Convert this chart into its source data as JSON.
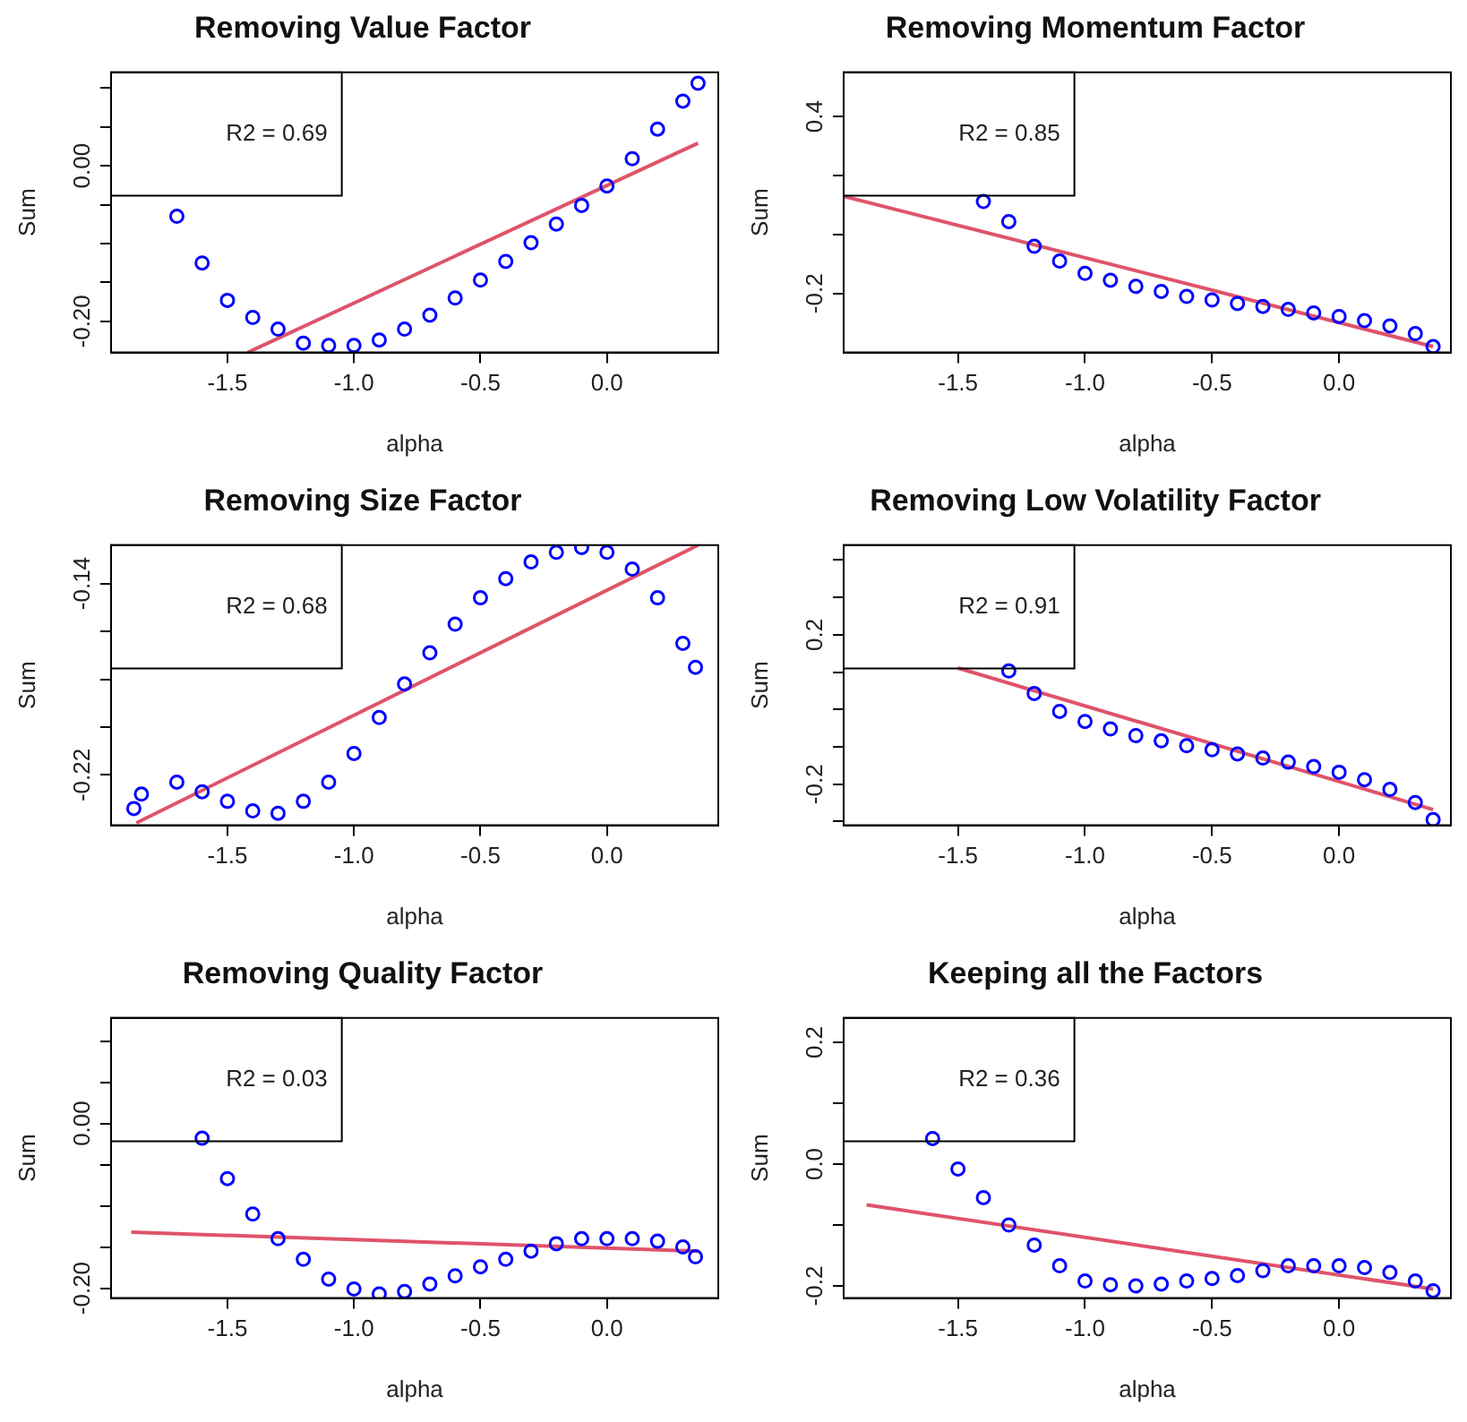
{
  "chart_data": [
    {
      "type": "scatter",
      "title": "Removing Value Factor",
      "xlabel": "alpha",
      "ylabel": "Sum",
      "annotations": [
        "R2 = 0.69"
      ],
      "xlim": [
        -1.96,
        0.44
      ],
      "xticks": [
        {
          "value": -1.5,
          "label": "-1.5"
        },
        {
          "value": -1,
          "label": "-1.0"
        },
        {
          "value": -0.5,
          "label": "-0.5"
        },
        {
          "value": 0,
          "label": "0.0"
        }
      ],
      "ylim": [
        -0.24,
        0.12
      ],
      "yticks": [
        {
          "value": 0.1,
          "label": null
        },
        {
          "value": 0.05,
          "label": null
        },
        {
          "value": 0,
          "label": "0.00"
        },
        {
          "value": -0.05,
          "label": null
        },
        {
          "value": -0.1,
          "label": null
        },
        {
          "value": -0.15,
          "label": null
        },
        {
          "value": -0.2,
          "label": "-0.20"
        }
      ],
      "series": [
        {
          "type": "scatter",
          "marker": "circle",
          "color": "#0000ff",
          "x": [
            -1.7,
            -1.6,
            -1.5,
            -1.4,
            -1.3,
            -1.2,
            -1.1,
            -1.0,
            -0.9,
            -0.8,
            -0.7,
            -0.6,
            -0.5,
            -0.4,
            -0.3,
            -0.2,
            -0.1,
            0.0,
            0.1,
            0.2,
            0.3,
            0.36
          ],
          "values": [
            -0.065,
            -0.125,
            -0.173,
            -0.195,
            -0.21,
            -0.228,
            -0.231,
            -0.231,
            -0.224,
            -0.21,
            -0.192,
            -0.17,
            -0.147,
            -0.123,
            -0.099,
            -0.075,
            -0.051,
            -0.026,
            0.009,
            0.047,
            0.083,
            0.106
          ]
        },
        {
          "type": "line",
          "color": "#df536b",
          "x": [
            -1.42,
            0.36
          ],
          "values": [
            -0.24,
            0.029
          ]
        }
      ]
    },
    {
      "type": "scatter",
      "title": "Removing Momentum Factor",
      "xlabel": "alpha",
      "ylabel": "Sum",
      "annotations": [
        "R2 = 0.85"
      ],
      "xlim": [
        -1.95,
        0.44
      ],
      "xticks": [
        {
          "value": -1.5,
          "label": "-1.5"
        },
        {
          "value": -1,
          "label": "-1.0"
        },
        {
          "value": -0.5,
          "label": "-0.5"
        },
        {
          "value": 0,
          "label": "0.0"
        }
      ],
      "ylim": [
        -0.4,
        0.55
      ],
      "yticks": [
        {
          "value": 0.4,
          "label": "0.4"
        },
        {
          "value": 0.2,
          "label": null
        },
        {
          "value": 0,
          "label": null
        },
        {
          "value": -0.2,
          "label": "-0.2"
        }
      ],
      "series": [
        {
          "type": "scatter",
          "marker": "circle",
          "color": "#0000ff",
          "x": [
            -1.4,
            -1.3,
            -1.2,
            -1.1,
            -1.0,
            -0.9,
            -0.8,
            -0.7,
            -0.6,
            -0.5,
            -0.4,
            -0.3,
            -0.2,
            -0.1,
            0.0,
            0.1,
            0.2,
            0.3,
            0.37
          ],
          "values": [
            0.112,
            0.044,
            -0.04,
            -0.09,
            -0.132,
            -0.155,
            -0.176,
            -0.193,
            -0.21,
            -0.222,
            -0.234,
            -0.244,
            -0.254,
            -0.266,
            -0.278,
            -0.292,
            -0.31,
            -0.336,
            -0.38
          ]
        },
        {
          "type": "line",
          "color": "#df536b",
          "x": [
            -1.95,
            0.37
          ],
          "values": [
            0.13,
            -0.38
          ]
        }
      ]
    },
    {
      "type": "scatter",
      "title": "Removing Size Factor",
      "xlabel": "alpha",
      "ylabel": "Sum",
      "annotations": [
        "R2 = 0.68"
      ],
      "xlim": [
        -1.96,
        0.44
      ],
      "xticks": [
        {
          "value": -1.5,
          "label": "-1.5"
        },
        {
          "value": -1,
          "label": "-1.0"
        },
        {
          "value": -0.5,
          "label": "-0.5"
        },
        {
          "value": 0,
          "label": "0.0"
        }
      ],
      "ylim": [
        -0.241,
        -0.124
      ],
      "yticks": [
        {
          "value": -0.14,
          "label": "-0.14"
        },
        {
          "value": -0.16,
          "label": null
        },
        {
          "value": -0.18,
          "label": null
        },
        {
          "value": -0.2,
          "label": null
        },
        {
          "value": -0.22,
          "label": "-0.22"
        }
      ],
      "series": [
        {
          "type": "scatter",
          "marker": "circle",
          "color": "#0000ff",
          "x": [
            -1.87,
            -1.84,
            -1.7,
            -1.6,
            -1.5,
            -1.4,
            -1.3,
            -1.2,
            -1.1,
            -1.0,
            -0.9,
            -0.8,
            -0.7,
            -0.6,
            -0.5,
            -0.4,
            -0.3,
            -0.2,
            -0.1,
            0.0,
            0.1,
            0.2,
            0.3,
            0.35
          ],
          "values": [
            -0.234,
            -0.228,
            -0.223,
            -0.227,
            -0.231,
            -0.235,
            -0.236,
            -0.231,
            -0.223,
            -0.211,
            -0.196,
            -0.182,
            -0.169,
            -0.157,
            -0.146,
            -0.138,
            -0.131,
            -0.127,
            -0.125,
            -0.127,
            -0.134,
            -0.146,
            -0.165,
            -0.175
          ]
        },
        {
          "type": "line",
          "color": "#df536b",
          "x": [
            -1.86,
            0.36
          ],
          "values": [
            -0.24,
            -0.124
          ]
        }
      ]
    },
    {
      "type": "scatter",
      "title": "Removing Low Volatility Factor",
      "xlabel": "alpha",
      "ylabel": "Sum",
      "annotations": [
        "R2 = 0.91"
      ],
      "xlim": [
        -1.95,
        0.44
      ],
      "xticks": [
        {
          "value": -1.5,
          "label": "-1.5"
        },
        {
          "value": -1,
          "label": "-1.0"
        },
        {
          "value": -0.5,
          "label": "-0.5"
        },
        {
          "value": 0,
          "label": "0.0"
        }
      ],
      "ylim": [
        -0.31,
        0.44
      ],
      "yticks": [
        {
          "value": 0.4,
          "label": null
        },
        {
          "value": 0.3,
          "label": null
        },
        {
          "value": 0.2,
          "label": "0.2"
        },
        {
          "value": 0.1,
          "label": null
        },
        {
          "value": 0,
          "label": null
        },
        {
          "value": -0.1,
          "label": null
        },
        {
          "value": -0.2,
          "label": "-0.2"
        },
        {
          "value": -0.3,
          "label": null
        }
      ],
      "series": [
        {
          "type": "scatter",
          "marker": "circle",
          "color": "#0000ff",
          "x": [
            -1.3,
            -1.2,
            -1.1,
            -1.0,
            -0.9,
            -0.8,
            -0.7,
            -0.6,
            -0.5,
            -0.4,
            -0.3,
            -0.2,
            -0.1,
            0.0,
            0.1,
            0.2,
            0.3,
            0.37
          ],
          "values": [
            0.103,
            0.043,
            -0.005,
            -0.032,
            -0.052,
            -0.07,
            -0.084,
            -0.097,
            -0.108,
            -0.119,
            -0.13,
            -0.141,
            -0.153,
            -0.168,
            -0.188,
            -0.214,
            -0.249,
            -0.295
          ]
        },
        {
          "type": "line",
          "color": "#df536b",
          "x": [
            -1.5,
            0.37
          ],
          "values": [
            0.111,
            -0.268
          ]
        }
      ]
    },
    {
      "type": "scatter",
      "title": "Removing Quality Factor",
      "xlabel": "alpha",
      "ylabel": "Sum",
      "annotations": [
        "R2 = 0.03"
      ],
      "xlim": [
        -1.96,
        0.44
      ],
      "xticks": [
        {
          "value": -1.5,
          "label": "-1.5"
        },
        {
          "value": -1,
          "label": "-1.0"
        },
        {
          "value": -0.5,
          "label": "-0.5"
        },
        {
          "value": 0,
          "label": "0.0"
        }
      ],
      "ylim": [
        -0.212,
        0.128
      ],
      "yticks": [
        {
          "value": 0.1,
          "label": null
        },
        {
          "value": 0.05,
          "label": null
        },
        {
          "value": 0,
          "label": "0.00"
        },
        {
          "value": -0.05,
          "label": null
        },
        {
          "value": -0.1,
          "label": null
        },
        {
          "value": -0.15,
          "label": null
        },
        {
          "value": -0.2,
          "label": "-0.20"
        }
      ],
      "series": [
        {
          "type": "scatter",
          "marker": "circle",
          "color": "#0000ff",
          "x": [
            -1.6,
            -1.5,
            -1.4,
            -1.3,
            -1.2,
            -1.1,
            -1.0,
            -0.9,
            -0.8,
            -0.7,
            -0.6,
            -0.5,
            -0.4,
            -0.3,
            -0.2,
            -0.1,
            0.0,
            0.1,
            0.2,
            0.3,
            0.35
          ],
          "values": [
            -0.018,
            -0.067,
            -0.11,
            -0.14,
            -0.165,
            -0.189,
            -0.201,
            -0.207,
            -0.204,
            -0.195,
            -0.185,
            -0.174,
            -0.165,
            -0.155,
            -0.146,
            -0.14,
            -0.14,
            -0.14,
            -0.143,
            -0.15,
            -0.162
          ]
        },
        {
          "type": "line",
          "color": "#df536b",
          "x": [
            -1.88,
            0.36
          ],
          "values": [
            -0.132,
            -0.155
          ]
        }
      ]
    },
    {
      "type": "scatter",
      "title": "Keeping all the Factors",
      "xlabel": "alpha",
      "ylabel": "Sum",
      "annotations": [
        "R2 = 0.36"
      ],
      "xlim": [
        -1.95,
        0.44
      ],
      "xticks": [
        {
          "value": -1.5,
          "label": "-1.5"
        },
        {
          "value": -1,
          "label": "-1.0"
        },
        {
          "value": -0.5,
          "label": "-0.5"
        },
        {
          "value": 0,
          "label": "0.0"
        }
      ],
      "ylim": [
        -0.22,
        0.24
      ],
      "yticks": [
        {
          "value": 0.2,
          "label": "0.2"
        },
        {
          "value": 0.1,
          "label": null
        },
        {
          "value": 0,
          "label": "0.0"
        },
        {
          "value": -0.1,
          "label": null
        },
        {
          "value": -0.2,
          "label": "-0.2"
        }
      ],
      "series": [
        {
          "type": "scatter",
          "marker": "circle",
          "color": "#0000ff",
          "x": [
            -1.6,
            -1.5,
            -1.4,
            -1.3,
            -1.2,
            -1.1,
            -1.0,
            -0.9,
            -0.8,
            -0.7,
            -0.6,
            -0.5,
            -0.4,
            -0.3,
            -0.2,
            -0.1,
            0.0,
            0.1,
            0.2,
            0.3,
            0.37
          ],
          "values": [
            0.042,
            -0.008,
            -0.055,
            -0.1,
            -0.133,
            -0.167,
            -0.192,
            -0.198,
            -0.2,
            -0.197,
            -0.192,
            -0.188,
            -0.183,
            -0.175,
            -0.167,
            -0.167,
            -0.167,
            -0.17,
            -0.178,
            -0.192,
            -0.208
          ]
        },
        {
          "type": "line",
          "color": "#df536b",
          "x": [
            -1.86,
            0.37
          ],
          "values": [
            -0.067,
            -0.205
          ]
        }
      ]
    }
  ]
}
